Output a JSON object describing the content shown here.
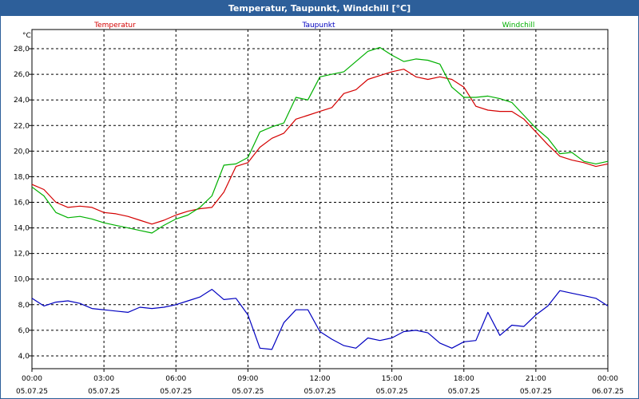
{
  "window": {
    "title": "Temperatur, Taupunkt, Windchill [°C]"
  },
  "colors": {
    "temperature": "#d40000",
    "dewpoint": "#0000c0",
    "windchill": "#00b000",
    "titlebar": "#2d5f9a"
  },
  "chart_data": {
    "type": "line",
    "title": "Temperatur, Taupunkt, Windchill [°C]",
    "ylabel": "°C",
    "ylim": [
      3.0,
      29.5
    ],
    "grid": true,
    "legend_placement": "top",
    "yticks": [
      4.0,
      6.0,
      8.0,
      10.0,
      12.0,
      14.0,
      16.0,
      18.0,
      20.0,
      22.0,
      24.0,
      26.0,
      28.0
    ],
    "ytick_labels": [
      "4,0",
      "6,0",
      "8,0",
      "10,0",
      "12,0",
      "14,0",
      "16,0",
      "18,0",
      "20,0",
      "22,0",
      "24,0",
      "26,0",
      "28,0"
    ],
    "xlim": [
      0,
      24
    ],
    "xticks": [
      {
        "h": 0,
        "time": "00:00",
        "date": "05.07.25"
      },
      {
        "h": 3,
        "time": "03:00",
        "date": "05.07.25"
      },
      {
        "h": 6,
        "time": "06:00",
        "date": "05.07.25"
      },
      {
        "h": 9,
        "time": "09:00",
        "date": "05.07.25"
      },
      {
        "h": 12,
        "time": "12:00",
        "date": "05.07.25"
      },
      {
        "h": 15,
        "time": "15:00",
        "date": "05.07.25"
      },
      {
        "h": 18,
        "time": "18:00",
        "date": "05.07.25"
      },
      {
        "h": 21,
        "time": "21:00",
        "date": "05.07.25"
      },
      {
        "h": 24,
        "time": "00:00",
        "date": "06.07.25"
      }
    ],
    "x": [
      0,
      0.5,
      1,
      1.5,
      2,
      2.5,
      3,
      3.5,
      4,
      4.5,
      5,
      5.5,
      6,
      6.5,
      7,
      7.5,
      8,
      8.5,
      9,
      9.5,
      10,
      10.5,
      11,
      11.5,
      12,
      12.5,
      13,
      13.5,
      14,
      14.5,
      15,
      15.5,
      16,
      16.5,
      17,
      17.5,
      18,
      18.5,
      19,
      19.5,
      20,
      20.5,
      21,
      21.5,
      22,
      22.5,
      23,
      23.5,
      24
    ],
    "series": [
      {
        "name": "Temperatur",
        "color": "#d40000",
        "values": [
          17.4,
          17.0,
          16.0,
          15.6,
          15.7,
          15.6,
          15.2,
          15.1,
          14.9,
          14.6,
          14.3,
          14.6,
          15.0,
          15.3,
          15.5,
          15.6,
          16.8,
          18.8,
          19.1,
          20.3,
          21.0,
          21.4,
          22.5,
          22.8,
          23.1,
          23.4,
          24.5,
          24.8,
          25.6,
          25.9,
          26.2,
          26.4,
          25.8,
          25.6,
          25.8,
          25.6,
          25.0,
          23.5,
          23.2,
          23.1,
          23.1,
          22.5,
          21.5,
          20.5,
          19.6,
          19.3,
          19.1,
          18.8,
          19.0
        ]
      },
      {
        "name": "Taupunkt",
        "color": "#0000c0",
        "values": [
          8.5,
          7.9,
          8.2,
          8.3,
          8.1,
          7.7,
          7.6,
          7.5,
          7.4,
          7.8,
          7.7,
          7.8,
          8.0,
          8.3,
          8.6,
          9.2,
          8.4,
          8.5,
          7.2,
          4.6,
          4.5,
          6.6,
          7.6,
          7.6,
          5.9,
          5.3,
          4.8,
          4.6,
          5.4,
          5.2,
          5.4,
          5.9,
          6.0,
          5.8,
          5.0,
          4.6,
          5.1,
          5.2,
          7.4,
          5.6,
          6.4,
          6.3,
          7.2,
          7.9,
          9.1,
          8.9,
          8.7,
          8.5,
          7.9
        ]
      },
      {
        "name": "Windchill",
        "color": "#00b000",
        "values": [
          17.2,
          16.5,
          15.2,
          14.8,
          14.9,
          14.7,
          14.4,
          14.2,
          14.0,
          13.8,
          13.6,
          14.2,
          14.7,
          15.0,
          15.6,
          16.5,
          18.9,
          19.0,
          19.5,
          21.5,
          21.9,
          22.2,
          24.2,
          24.0,
          25.8,
          26.0,
          26.2,
          27.0,
          27.8,
          28.1,
          27.5,
          27.0,
          27.2,
          27.1,
          26.8,
          25.0,
          24.2,
          24.2,
          24.3,
          24.1,
          23.8,
          22.8,
          21.8,
          21.0,
          19.8,
          19.9,
          19.2,
          19.0,
          19.2
        ]
      }
    ]
  }
}
